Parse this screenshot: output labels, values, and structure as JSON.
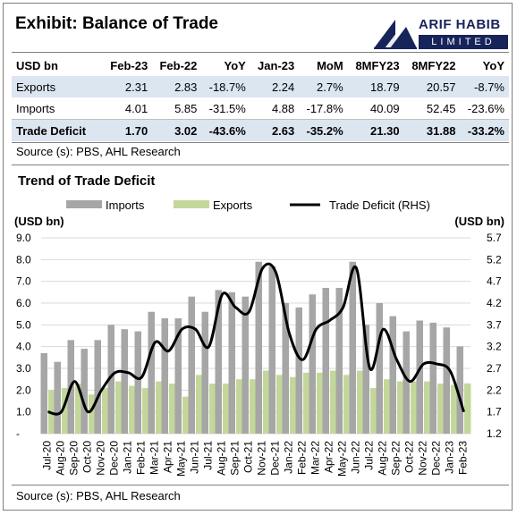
{
  "header": {
    "title": "Exhibit: Balance of Trade"
  },
  "logo": {
    "top": "ARIF HABIB",
    "bottom": "LIMITED"
  },
  "table": {
    "columns": [
      "USD bn",
      "Feb-23",
      "Feb-22",
      "YoY",
      "Jan-23",
      "MoM",
      "8MFY23",
      "8MFY22",
      "YoY"
    ],
    "rows": [
      [
        "Exports",
        "2.31",
        "2.83",
        "-18.7%",
        "2.24",
        "2.7%",
        "18.79",
        "20.57",
        "-8.7%"
      ],
      [
        "Imports",
        "4.01",
        "5.85",
        "-31.5%",
        "4.88",
        "-17.8%",
        "40.09",
        "52.45",
        "-23.6%"
      ],
      [
        "Trade Deficit",
        "1.70",
        "3.02",
        "-43.6%",
        "2.63",
        "-35.2%",
        "21.30",
        "31.88",
        "-33.2%"
      ]
    ]
  },
  "source1": "Source (s): PBS, AHL Research",
  "chart_title": "Trend of Trade Deficit",
  "source2": "Source (s): PBS, AHL Research",
  "colors": {
    "imports": "#a6a6a6",
    "exports": "#c4d79b",
    "deficit": "#000000",
    "shade": "#dce6f1",
    "logo": "#17245a"
  },
  "chart_data": {
    "type": "bar",
    "left_unit": "(USD bn)",
    "right_unit": "(USD bn)",
    "ylim_left": [
      0,
      9
    ],
    "ylim_right": [
      1.2,
      5.7
    ],
    "left_ticks": [
      "-",
      "1.0",
      "2.0",
      "3.0",
      "4.0",
      "5.0",
      "6.0",
      "7.0",
      "8.0",
      "9.0"
    ],
    "right_ticks": [
      "1.2",
      "1.7",
      "2.2",
      "2.7",
      "3.2",
      "3.7",
      "4.2",
      "4.7",
      "5.2",
      "5.7"
    ],
    "grid": true,
    "legend_position": "top",
    "categories": [
      "Jul-20",
      "Aug-20",
      "Sep-20",
      "Oct-20",
      "Nov-20",
      "Dec-20",
      "Jan-21",
      "Feb-21",
      "Mar-21",
      "Apr-21",
      "May-21",
      "Jun-21",
      "Jul-21",
      "Aug-21",
      "Sep-21",
      "Oct-21",
      "Nov-21",
      "Dec-21",
      "Jan-22",
      "Feb-22",
      "Mar-22",
      "Apr-22",
      "May-22",
      "Jun-22",
      "Jul-22",
      "Aug-22",
      "Sep-22",
      "Oct-22",
      "Nov-22",
      "Dec-22",
      "Jan-23",
      "Feb-23"
    ],
    "series": [
      {
        "name": "Imports",
        "kind": "bar",
        "axis": "left",
        "values": [
          3.7,
          3.3,
          4.3,
          3.9,
          4.3,
          5.0,
          4.8,
          4.7,
          5.6,
          5.3,
          5.3,
          6.3,
          5.6,
          6.6,
          6.5,
          6.3,
          7.9,
          7.7,
          6.0,
          5.8,
          6.4,
          6.7,
          6.7,
          7.9,
          5.0,
          6.0,
          5.4,
          4.7,
          5.2,
          5.1,
          4.88,
          4.01
        ]
      },
      {
        "name": "Exports",
        "kind": "bar",
        "axis": "left",
        "values": [
          2.0,
          2.1,
          2.3,
          1.8,
          2.1,
          2.4,
          2.2,
          2.1,
          2.4,
          2.3,
          1.7,
          2.7,
          2.3,
          2.3,
          2.5,
          2.5,
          2.9,
          2.7,
          2.6,
          2.8,
          2.8,
          2.9,
          2.7,
          2.9,
          2.1,
          2.5,
          2.4,
          2.4,
          2.4,
          2.3,
          2.24,
          2.31
        ]
      },
      {
        "name": "Trade Deficit (RHS)",
        "kind": "line",
        "axis": "right",
        "values": [
          1.7,
          1.7,
          2.4,
          1.7,
          2.2,
          2.6,
          2.6,
          2.5,
          3.3,
          3.1,
          3.6,
          3.6,
          3.2,
          4.4,
          4.1,
          4.0,
          5.0,
          4.9,
          3.5,
          2.9,
          3.6,
          3.8,
          4.1,
          5.0,
          2.7,
          3.6,
          2.9,
          2.4,
          2.8,
          2.8,
          2.63,
          1.7
        ]
      }
    ]
  }
}
